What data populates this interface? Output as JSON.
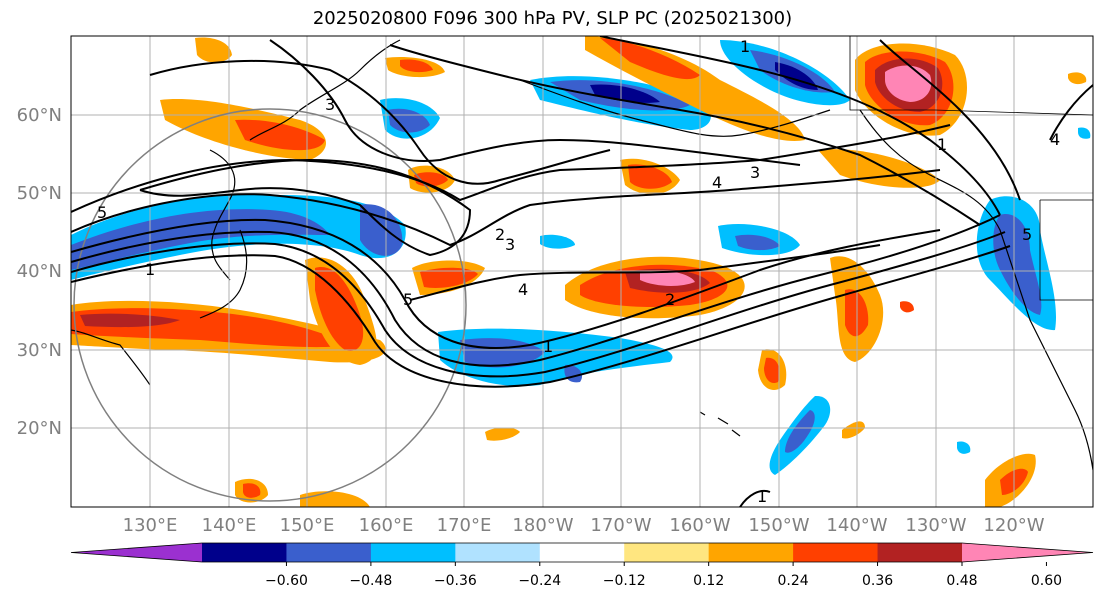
{
  "title": "2025020800 F096 300 hPa PV, SLP PC (2025021300)",
  "lat_labels": [
    "60°N",
    "50°N",
    "40°N",
    "30°N",
    "20°N"
  ],
  "lon_labels": [
    "130°E",
    "140°E",
    "150°E",
    "160°E",
    "170°E",
    "180°W",
    "170°W",
    "160°W",
    "150°W",
    "140°W",
    "130°W",
    "120°W"
  ],
  "colorbar": {
    "colors": [
      "#9b30d0",
      "#00008b",
      "#3a5fcd",
      "#00bfff",
      "#b0e2ff",
      "#ffffff",
      "#ffe680",
      "#ffa500",
      "#ff4000",
      "#b22222",
      "#ff85b5"
    ],
    "tick_labels": [
      "−0.60",
      "−0.48",
      "−0.36",
      "−0.24",
      "−0.12",
      "0.12",
      "0.24",
      "0.36",
      "0.48",
      "0.60"
    ]
  },
  "contour_labels": [
    "1",
    "1",
    "1",
    "1",
    "2",
    "2",
    "3",
    "3",
    "3",
    "4",
    "4",
    "4",
    "5",
    "5",
    "5",
    "1"
  ]
}
